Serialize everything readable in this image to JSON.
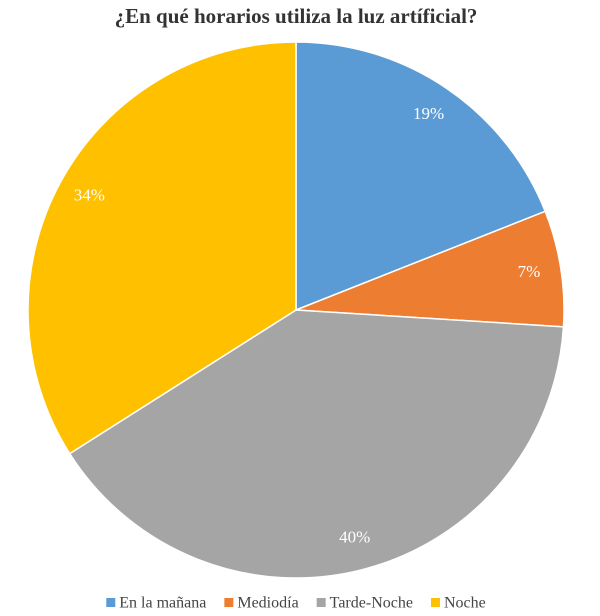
{
  "chart_data": {
    "type": "pie",
    "title": "¿En qué horarios utiliza la luz artíficial?",
    "categories": [
      "En la mañana",
      "Mediodía",
      "Tarde-Noche",
      "Noche"
    ],
    "values": [
      19,
      7,
      40,
      34
    ],
    "value_labels": [
      "19%",
      "7%",
      "40%",
      "34%"
    ],
    "colors": [
      "#5b9bd5",
      "#ed7d31",
      "#a5a5a5",
      "#ffc000"
    ],
    "legend": "bottom"
  }
}
